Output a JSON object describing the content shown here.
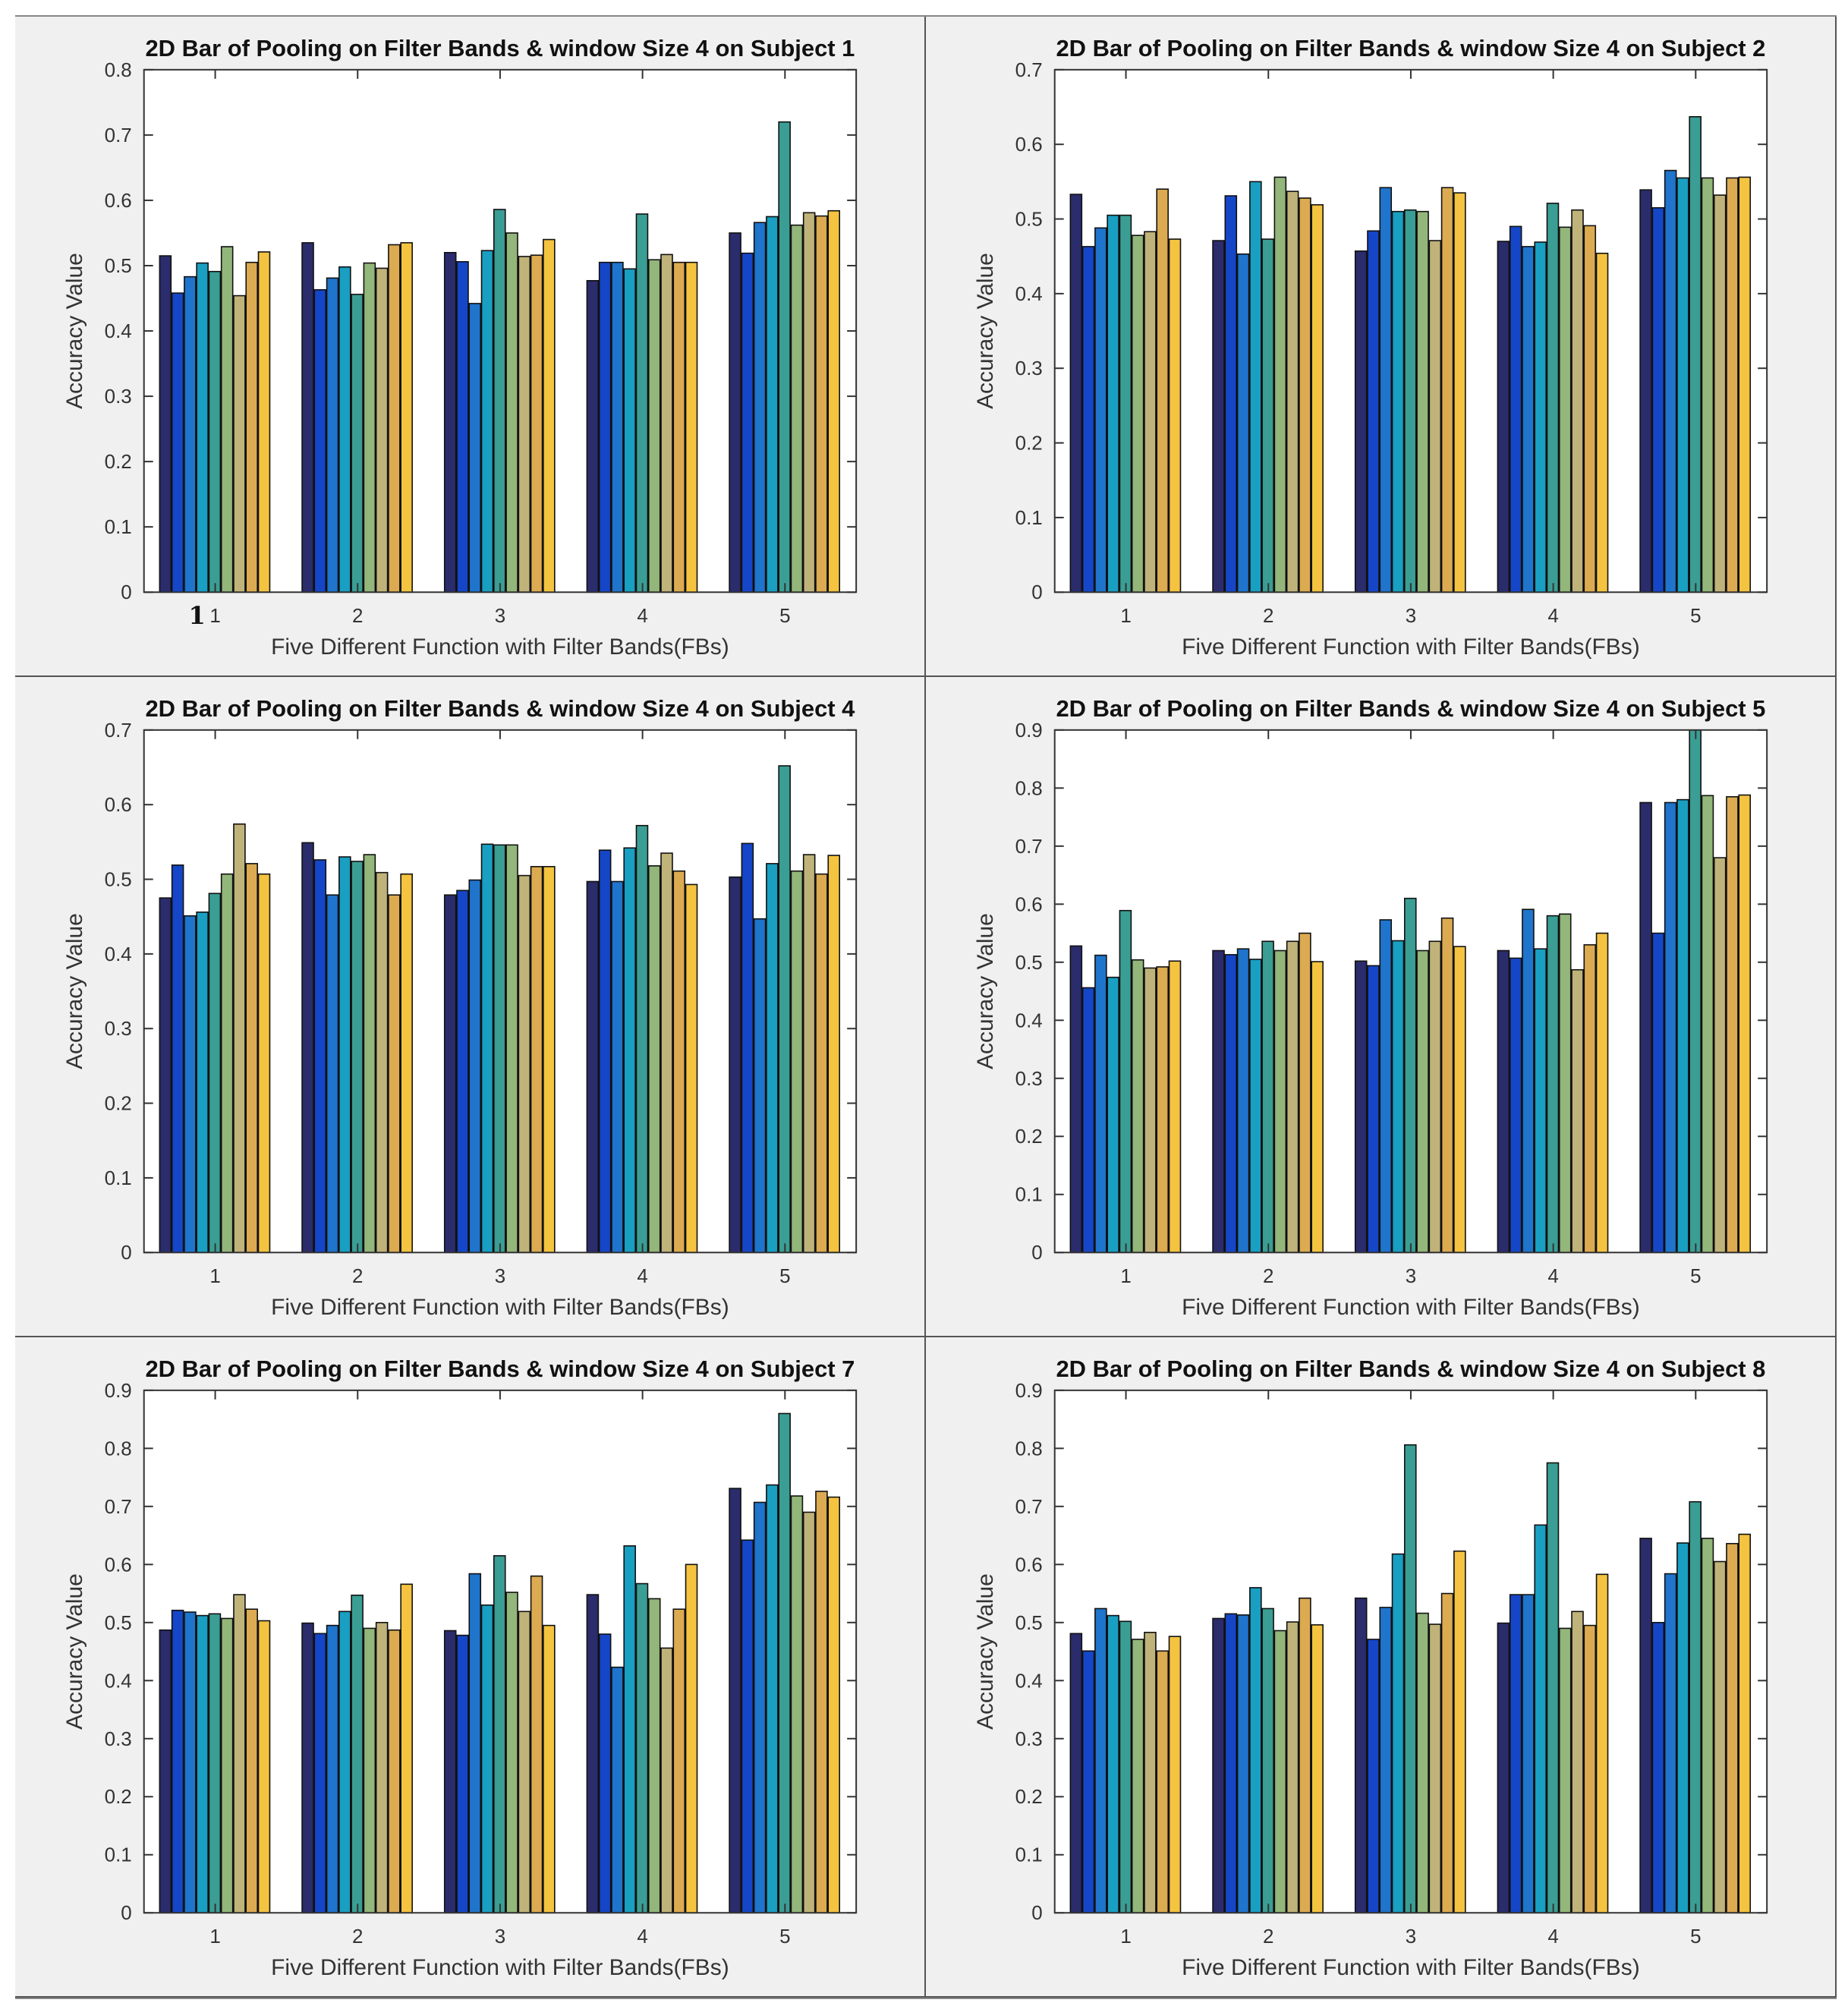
{
  "figure": {
    "panel_order": [
      "subject-1",
      "subject-2",
      "subject-4",
      "subject-5",
      "subject-7",
      "subject-8"
    ],
    "stray_mark": "1"
  },
  "chart_data": [
    {
      "id": "subject-1",
      "type": "bar",
      "title": "2D Bar of Pooling on Filter Bands & window Size 4  on Subject 1",
      "xlabel": "Five Different Function with Filter Bands(FBs)",
      "ylabel": "Accuracy Value",
      "categories": [
        "1",
        "2",
        "3",
        "4",
        "5"
      ],
      "ylim": [
        0,
        0.8
      ],
      "yticks": [
        "0",
        "0.1",
        "0.2",
        "0.3",
        "0.4",
        "0.5",
        "0.6",
        "0.7",
        "0.8"
      ],
      "series_colors": [
        "#2a2c6b",
        "#1546c8",
        "#1f74cc",
        "#199fc2",
        "#3a9e94",
        "#93b67a",
        "#c0b37a",
        "#dcaa50",
        "#f4c340",
        "#f8f51c"
      ],
      "values": [
        [
          0.515,
          0.458,
          0.483,
          0.504,
          0.491,
          0.529,
          0.454,
          0.505,
          0.521
        ],
        [
          0.535,
          0.463,
          0.481,
          0.498,
          0.456,
          0.504,
          0.496,
          0.532,
          0.535
        ],
        [
          0.52,
          0.506,
          0.442,
          0.523,
          0.586,
          0.55,
          0.514,
          0.516,
          0.54
        ],
        [
          0.477,
          0.505,
          0.505,
          0.495,
          0.579,
          0.509,
          0.517,
          0.505,
          0.505
        ],
        [
          0.55,
          0.519,
          0.566,
          0.575,
          0.72,
          0.562,
          0.581,
          0.576,
          0.584
        ]
      ]
    },
    {
      "id": "subject-2",
      "type": "bar",
      "title": "2D Bar of Pooling on Filter Bands & window Size 4  on Subject 2",
      "xlabel": "Five Different Function with Filter Bands(FBs)",
      "ylabel": "Accuracy Value",
      "categories": [
        "1",
        "2",
        "3",
        "4",
        "5"
      ],
      "ylim": [
        0,
        0.7
      ],
      "yticks": [
        "0",
        "0.1",
        "0.2",
        "0.3",
        "0.4",
        "0.5",
        "0.6",
        "0.7"
      ],
      "series_colors": [
        "#2a2c6b",
        "#1546c8",
        "#1f74cc",
        "#199fc2",
        "#3a9e94",
        "#93b67a",
        "#c0b37a",
        "#dcaa50",
        "#f4c340",
        "#f8f51c"
      ],
      "values": [
        [
          0.533,
          0.463,
          0.488,
          0.505,
          0.505,
          0.478,
          0.483,
          0.54,
          0.473
        ],
        [
          0.471,
          0.531,
          0.453,
          0.55,
          0.473,
          0.556,
          0.537,
          0.528,
          0.519
        ],
        [
          0.457,
          0.484,
          0.542,
          0.51,
          0.512,
          0.51,
          0.471,
          0.542,
          0.535
        ],
        [
          0.47,
          0.49,
          0.463,
          0.469,
          0.521,
          0.489,
          0.512,
          0.491,
          0.454
        ],
        [
          0.539,
          0.515,
          0.565,
          0.555,
          0.637,
          0.555,
          0.532,
          0.555,
          0.556
        ]
      ]
    },
    {
      "id": "subject-4",
      "type": "bar",
      "title": "2D Bar of Pooling on Filter Bands & window Size 4  on Subject 4",
      "xlabel": "Five Different Function with Filter Bands(FBs)",
      "ylabel": "Accuracy Value",
      "categories": [
        "1",
        "2",
        "3",
        "4",
        "5"
      ],
      "ylim": [
        0,
        0.7
      ],
      "yticks": [
        "0",
        "0.1",
        "0.2",
        "0.3",
        "0.4",
        "0.5",
        "0.6",
        "0.7"
      ],
      "series_colors": [
        "#2a2c6b",
        "#1546c8",
        "#1f74cc",
        "#199fc2",
        "#3a9e94",
        "#93b67a",
        "#c0b37a",
        "#dcaa50",
        "#f4c340",
        "#f8f51c"
      ],
      "values": [
        [
          0.475,
          0.519,
          0.451,
          0.456,
          0.481,
          0.507,
          0.574,
          0.521,
          0.507
        ],
        [
          0.549,
          0.526,
          0.479,
          0.53,
          0.524,
          0.533,
          0.509,
          0.479,
          0.507
        ],
        [
          0.479,
          0.485,
          0.499,
          0.547,
          0.546,
          0.546,
          0.505,
          0.517,
          0.517
        ],
        [
          0.497,
          0.539,
          0.497,
          0.542,
          0.572,
          0.518,
          0.535,
          0.511,
          0.493
        ],
        [
          0.503,
          0.548,
          0.447,
          0.521,
          0.652,
          0.511,
          0.533,
          0.507,
          0.532
        ]
      ]
    },
    {
      "id": "subject-5",
      "type": "bar",
      "title": "2D Bar of Pooling on Filter Bands & window Size 4  on Subject 5",
      "xlabel": "Five Different Function with Filter Bands(FBs)",
      "ylabel": "Accuracy Value",
      "categories": [
        "1",
        "2",
        "3",
        "4",
        "5"
      ],
      "ylim": [
        0,
        0.9
      ],
      "yticks": [
        "0",
        "0.1",
        "0.2",
        "0.3",
        "0.4",
        "0.5",
        "0.6",
        "0.7",
        "0.8",
        "0.9"
      ],
      "series_colors": [
        "#2a2c6b",
        "#1546c8",
        "#1f74cc",
        "#199fc2",
        "#3a9e94",
        "#93b67a",
        "#c0b37a",
        "#dcaa50",
        "#f4c340",
        "#f8f51c"
      ],
      "values": [
        [
          0.528,
          0.456,
          0.512,
          0.474,
          0.589,
          0.504,
          0.49,
          0.492,
          0.502
        ],
        [
          0.52,
          0.513,
          0.523,
          0.505,
          0.536,
          0.52,
          0.536,
          0.55,
          0.501
        ],
        [
          0.502,
          0.494,
          0.573,
          0.537,
          0.61,
          0.52,
          0.536,
          0.576,
          0.527
        ],
        [
          0.52,
          0.507,
          0.591,
          0.523,
          0.58,
          0.583,
          0.487,
          0.53,
          0.55
        ],
        [
          0.775,
          0.55,
          0.775,
          0.78,
          0.9,
          0.787,
          0.68,
          0.785,
          0.788
        ]
      ]
    },
    {
      "id": "subject-7",
      "type": "bar",
      "title": "2D Bar of Pooling on Filter Bands & window Size 4  on Subject 7",
      "xlabel": "Five Different Function with Filter Bands(FBs)",
      "ylabel": "Accuracy Value",
      "categories": [
        "1",
        "2",
        "3",
        "4",
        "5"
      ],
      "ylim": [
        0,
        0.9
      ],
      "yticks": [
        "0",
        "0.1",
        "0.2",
        "0.3",
        "0.4",
        "0.5",
        "0.6",
        "0.7",
        "0.8",
        "0.9"
      ],
      "series_colors": [
        "#2a2c6b",
        "#1546c8",
        "#1f74cc",
        "#199fc2",
        "#3a9e94",
        "#93b67a",
        "#c0b37a",
        "#dcaa50",
        "#f4c340",
        "#f8f51c"
      ],
      "values": [
        [
          0.487,
          0.521,
          0.518,
          0.512,
          0.515,
          0.507,
          0.548,
          0.523,
          0.503
        ],
        [
          0.499,
          0.481,
          0.495,
          0.519,
          0.547,
          0.49,
          0.5,
          0.487,
          0.566
        ],
        [
          0.486,
          0.478,
          0.584,
          0.53,
          0.615,
          0.552,
          0.519,
          0.58,
          0.495
        ],
        [
          0.548,
          0.48,
          0.423,
          0.632,
          0.567,
          0.541,
          0.456,
          0.523,
          0.6
        ],
        [
          0.731,
          0.642,
          0.707,
          0.737,
          0.86,
          0.718,
          0.69,
          0.726,
          0.716
        ]
      ]
    },
    {
      "id": "subject-8",
      "type": "bar",
      "title": "2D Bar of Pooling on Filter Bands & window Size 4  on Subject 8",
      "xlabel": "Five Different Function with Filter Bands(FBs)",
      "ylabel": "Accuracy Value",
      "categories": [
        "1",
        "2",
        "3",
        "4",
        "5"
      ],
      "ylim": [
        0,
        0.9
      ],
      "yticks": [
        "0",
        "0.1",
        "0.2",
        "0.3",
        "0.4",
        "0.5",
        "0.6",
        "0.7",
        "0.8",
        "0.9"
      ],
      "series_colors": [
        "#2a2c6b",
        "#1546c8",
        "#1f74cc",
        "#199fc2",
        "#3a9e94",
        "#93b67a",
        "#c0b37a",
        "#dcaa50",
        "#f4c340",
        "#f8f51c"
      ],
      "values": [
        [
          0.481,
          0.451,
          0.524,
          0.512,
          0.502,
          0.471,
          0.483,
          0.451,
          0.476
        ],
        [
          0.507,
          0.515,
          0.513,
          0.56,
          0.524,
          0.486,
          0.501,
          0.542,
          0.496
        ],
        [
          0.542,
          0.471,
          0.526,
          0.618,
          0.806,
          0.516,
          0.497,
          0.55,
          0.623
        ],
        [
          0.499,
          0.548,
          0.548,
          0.668,
          0.775,
          0.49,
          0.519,
          0.495,
          0.583
        ],
        [
          0.645,
          0.5,
          0.584,
          0.637,
          0.708,
          0.645,
          0.605,
          0.636,
          0.652
        ]
      ]
    }
  ]
}
